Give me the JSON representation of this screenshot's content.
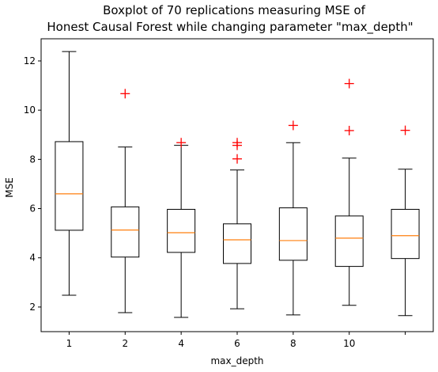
{
  "chart_data": {
    "type": "boxplot",
    "title": [
      "Boxplot of 70 replications measuring MSE of",
      "Honest Causal Forest while changing parameter \"max_depth\""
    ],
    "xlabel": "max_depth",
    "ylabel": "MSE",
    "ylim": [
      1.0,
      12.9
    ],
    "yticks": [
      2,
      4,
      6,
      8,
      10,
      12
    ],
    "xtick_labels": [
      "1",
      "2",
      "4",
      "6",
      "8",
      "10",
      ""
    ],
    "boxes": [
      {
        "whisker_low": 2.48,
        "q1": 5.12,
        "median": 6.6,
        "q3": 8.72,
        "whisker_high": 12.38,
        "fliers": []
      },
      {
        "whisker_low": 1.77,
        "q1": 4.03,
        "median": 5.13,
        "q3": 6.07,
        "whisker_high": 8.5,
        "fliers": [
          10.67
        ]
      },
      {
        "whisker_low": 1.58,
        "q1": 4.22,
        "median": 5.02,
        "q3": 5.97,
        "whisker_high": 8.57,
        "fliers": [
          8.68
        ]
      },
      {
        "whisker_low": 1.93,
        "q1": 3.77,
        "median": 4.73,
        "q3": 5.38,
        "whisker_high": 7.57,
        "fliers": [
          8.02,
          8.57,
          8.68
        ]
      },
      {
        "whisker_low": 1.68,
        "q1": 3.9,
        "median": 4.7,
        "q3": 6.03,
        "whisker_high": 8.68,
        "fliers": [
          9.38
        ]
      },
      {
        "whisker_low": 2.07,
        "q1": 3.65,
        "median": 4.8,
        "q3": 5.7,
        "whisker_high": 8.05,
        "fliers": [
          9.17,
          11.08
        ]
      },
      {
        "whisker_low": 1.65,
        "q1": 3.97,
        "median": 4.9,
        "q3": 5.97,
        "whisker_high": 7.6,
        "fliers": [
          9.18
        ]
      }
    ],
    "colors": {
      "box": "#000000",
      "median": "#ff7f0e",
      "flier": "#ff0000"
    },
    "grid": false,
    "legend": "none"
  }
}
